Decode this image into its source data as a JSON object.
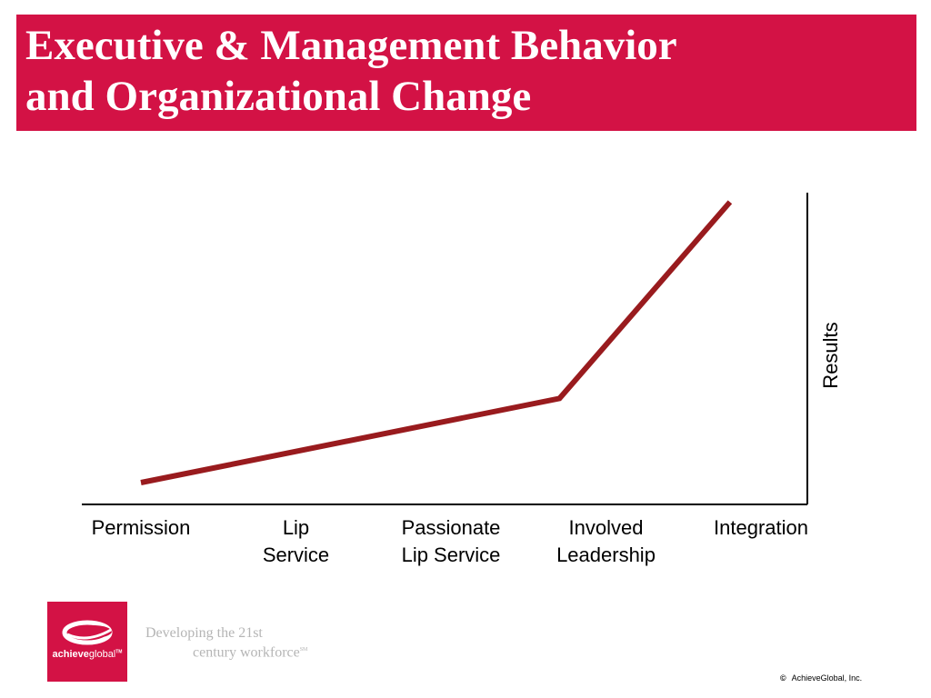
{
  "slide": {
    "title_lines": [
      "Executive & Management Behavior",
      "and Organizational Change"
    ]
  },
  "chart_data": {
    "type": "line",
    "title": "",
    "xlabel": "",
    "ylabel": "Results",
    "categories": [
      [
        "Permission"
      ],
      [
        "Lip",
        "Service"
      ],
      [
        "Passionate",
        "Lip Service"
      ],
      [
        "Involved",
        "Leadership"
      ],
      [
        "Integration"
      ]
    ],
    "ylim": [
      0,
      100
    ],
    "grid": false,
    "legend": "none",
    "line_color": "#991b1e",
    "series": [
      {
        "x": [
          0,
          2.7,
          3.8
        ],
        "values": [
          7,
          34,
          97
        ]
      }
    ]
  },
  "footer": {
    "logo_text_bold": "achieve",
    "logo_text_light": "global",
    "logo_mark": "TM",
    "tagline_line1": "Developing the 21st",
    "tagline_line2": "century workforce",
    "tagline_mark": "SM",
    "copyright_symbol": "©",
    "copyright_text": "AchieveGlobal, Inc."
  },
  "colors": {
    "brand_red": "#d31245",
    "line_red": "#991b1e",
    "tagline_gray": "#b5b5b5"
  }
}
